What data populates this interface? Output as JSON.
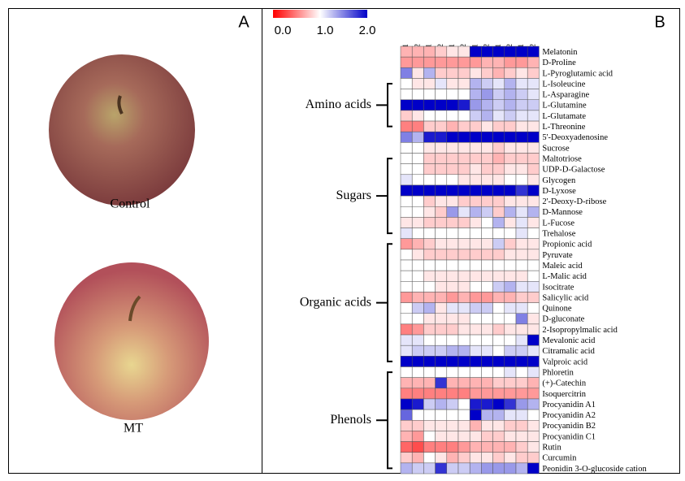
{
  "panel_a": {
    "label": "A",
    "captions": [
      "Control",
      "MT"
    ]
  },
  "panel_b": {
    "label": "B"
  },
  "chart_data": {
    "type": "heatmap",
    "columns": [
      "CK2_A1",
      "CK2_A2",
      "CK2_B1",
      "CK2_B2",
      "CK2_C1",
      "CK2_C2",
      "MT2_A1",
      "MT2_A2",
      "MT2_B1",
      "MT2_B2",
      "MT2_C1",
      "MT2_C2"
    ],
    "rows": [
      "Melatonin",
      "D-Proline",
      "L-Pyroglutamic acid",
      "L-Isoleucine",
      "L-Asparagine",
      "L-Glutamine",
      "L-Glutamate",
      "L-Threonine",
      "5'-Deoxyadenosine",
      "Sucrose",
      "Maltotriose",
      "UDP-D-Galactose",
      "Glycogen",
      "D-Lyxose",
      "2'-Deoxy-D-ribose",
      "D-Mannose",
      "L-Fucose",
      "Trehalose",
      "Propionic acid",
      "Pyruvate",
      "Maleic acid",
      "L-Malic acid",
      "Isocitrate",
      "Salicylic acid",
      "Quinone",
      "D-gluconate",
      "2-Isopropylmalic acid",
      "Mevalonic acid",
      "Citramalic acid",
      "Valproic acid",
      "Phloretin",
      "(+)-Catechin",
      "Isoquercitrin",
      "Procyanidin A1",
      "Procyanidin A2",
      "Procyanidin B2",
      "Procyanidin C1",
      "Rutin",
      "Curcumin",
      "Peonidin 3-O-glucoside cation"
    ],
    "groups": [
      "Amino acids",
      "Sugars",
      "Organic acids",
      "Phenols"
    ],
    "colormap": [
      "#ff0000",
      "#ffffff",
      "#0000c8"
    ],
    "colorlim": [
      0,
      2
    ],
    "colorticks": [
      {
        "value": 0,
        "label": "0.0"
      },
      {
        "value": 1,
        "label": "1.0"
      },
      {
        "value": 2,
        "label": "2.0"
      }
    ],
    "values": [
      [
        0.7,
        0.7,
        0.7,
        0.8,
        0.9,
        0.9,
        2,
        2,
        2,
        2,
        2,
        2
      ],
      [
        0.6,
        0.6,
        0.6,
        0.6,
        0.6,
        0.6,
        0.6,
        0.7,
        0.7,
        0.6,
        0.6,
        0.7
      ],
      [
        1.5,
        0.9,
        1.3,
        0.8,
        0.8,
        0.8,
        0.9,
        0.8,
        0.7,
        0.8,
        0.9,
        0.8
      ],
      [
        1.0,
        0.9,
        0.9,
        1.1,
        0.9,
        0.9,
        1.3,
        1.2,
        1.1,
        1.3,
        1.1,
        1.1
      ],
      [
        1.0,
        1.0,
        1.0,
        1.0,
        1.0,
        1.0,
        1.3,
        1.4,
        1.2,
        1.3,
        1.2,
        1.1
      ],
      [
        2,
        2,
        2,
        2,
        2,
        1.9,
        1.4,
        1.3,
        1.2,
        1.3,
        1.2,
        1.2
      ],
      [
        0.8,
        0.9,
        1.0,
        1.0,
        1.0,
        1.0,
        1.2,
        1.3,
        1.1,
        1.2,
        1.1,
        1.1
      ],
      [
        0.5,
        0.5,
        0.8,
        0.8,
        0.7,
        0.8,
        0.8,
        0.9,
        0.8,
        0.8,
        0.9,
        0.9
      ],
      [
        1.5,
        1.3,
        1.9,
        1.9,
        2,
        2,
        2,
        2,
        2,
        2,
        2,
        2
      ],
      [
        1.0,
        1.0,
        0.9,
        0.9,
        0.9,
        0.9,
        0.9,
        0.9,
        0.8,
        0.9,
        0.9,
        0.9
      ],
      [
        1.0,
        1.0,
        0.8,
        0.8,
        0.8,
        0.8,
        0.8,
        0.8,
        0.7,
        0.8,
        0.8,
        0.8
      ],
      [
        1.0,
        1.0,
        0.8,
        0.8,
        0.8,
        0.8,
        0.9,
        0.8,
        0.8,
        0.9,
        0.9,
        0.8
      ],
      [
        1.1,
        1.0,
        1.0,
        1.0,
        1.0,
        0.9,
        0.9,
        0.9,
        0.9,
        1.0,
        1.0,
        0.9
      ],
      [
        2,
        2,
        2,
        2,
        2,
        2,
        2,
        2,
        2,
        2,
        1.8,
        2
      ],
      [
        1.0,
        1.0,
        0.8,
        0.9,
        0.9,
        0.8,
        0.8,
        0.8,
        0.8,
        0.9,
        0.9,
        0.9
      ],
      [
        1.0,
        1.0,
        0.9,
        0.8,
        1.4,
        1.1,
        1.3,
        1.2,
        0.8,
        1.3,
        1.1,
        1.3
      ],
      [
        0.9,
        0.9,
        0.8,
        0.8,
        0.8,
        0.8,
        0.9,
        1.0,
        1.3,
        0.9,
        1.1,
        0.9
      ],
      [
        1.1,
        1.0,
        1.0,
        1.0,
        1.0,
        1.0,
        1.0,
        1.0,
        1.0,
        1.0,
        1.1,
        1.0
      ],
      [
        0.6,
        0.7,
        0.8,
        0.9,
        0.9,
        0.9,
        0.9,
        0.9,
        1.2,
        0.8,
        0.9,
        0.9
      ],
      [
        1.0,
        0.9,
        0.8,
        0.8,
        0.8,
        0.8,
        0.8,
        0.8,
        0.8,
        0.9,
        0.9,
        0.9
      ],
      [
        1.0,
        1.0,
        1.0,
        1.0,
        1.0,
        1.0,
        1.0,
        1.0,
        1.0,
        1.0,
        1.0,
        1.0
      ],
      [
        1.0,
        1.0,
        0.9,
        0.9,
        0.9,
        0.9,
        0.9,
        0.9,
        0.9,
        0.9,
        0.9,
        1.0
      ],
      [
        1.0,
        1.0,
        1.0,
        0.9,
        0.9,
        0.9,
        1.0,
        1.0,
        1.2,
        1.3,
        1.1,
        1.1
      ],
      [
        0.6,
        0.7,
        0.7,
        0.7,
        0.6,
        0.7,
        0.6,
        0.6,
        0.7,
        0.7,
        0.8,
        0.8
      ],
      [
        1.0,
        1.2,
        1.3,
        0.9,
        1.1,
        1.1,
        1.2,
        1.2,
        1.0,
        1.1,
        1.1,
        1.0
      ],
      [
        1.0,
        1.0,
        0.9,
        0.9,
        0.9,
        0.9,
        1.0,
        1.0,
        1.0,
        1.0,
        1.5,
        0.9
      ],
      [
        0.5,
        0.6,
        0.8,
        0.8,
        0.8,
        0.9,
        0.9,
        0.9,
        0.8,
        0.9,
        0.9,
        0.9
      ],
      [
        1.1,
        1.1,
        1.0,
        1.0,
        1.0,
        1.0,
        1.0,
        1.0,
        1.0,
        1.0,
        1.1,
        2
      ],
      [
        1.1,
        1.2,
        1.2,
        1.2,
        1.3,
        1.3,
        1.1,
        1.1,
        1.0,
        1.2,
        1.2,
        1.1
      ],
      [
        2,
        2,
        2,
        2,
        2,
        2,
        2,
        2,
        2,
        2,
        2,
        2
      ],
      [
        1.0,
        1.0,
        1.0,
        1.0,
        1.0,
        1.0,
        1.0,
        1.0,
        1.0,
        1.1,
        1.0,
        1.1
      ],
      [
        0.7,
        0.7,
        0.7,
        1.8,
        0.7,
        0.7,
        0.7,
        0.7,
        0.8,
        0.8,
        0.8,
        0.7
      ],
      [
        0.5,
        0.5,
        0.5,
        0.5,
        0.5,
        0.5,
        0.6,
        0.6,
        0.6,
        0.6,
        0.6,
        0.6
      ],
      [
        2,
        1.9,
        1.2,
        1.3,
        1.2,
        1.0,
        1.9,
        1.9,
        2,
        1.8,
        1.4,
        1.3
      ],
      [
        1.6,
        1.0,
        1.0,
        1.0,
        1.0,
        1.0,
        2,
        1.3,
        1.3,
        1.1,
        1.1,
        1.0
      ],
      [
        0.8,
        0.8,
        0.9,
        0.9,
        0.9,
        0.9,
        0.7,
        0.9,
        0.9,
        0.8,
        0.8,
        0.9
      ],
      [
        0.7,
        0.6,
        1.0,
        0.9,
        0.9,
        0.9,
        0.9,
        0.8,
        0.8,
        0.9,
        0.9,
        0.9
      ],
      [
        0.4,
        0.3,
        0.5,
        0.5,
        0.5,
        0.6,
        0.7,
        0.7,
        0.7,
        0.7,
        0.8,
        0.9
      ],
      [
        0.8,
        0.7,
        1.0,
        0.9,
        0.7,
        0.8,
        0.9,
        0.9,
        0.8,
        0.9,
        0.8,
        0.8
      ],
      [
        1.3,
        1.2,
        1.2,
        1.8,
        1.2,
        1.2,
        1.3,
        1.4,
        1.4,
        1.4,
        1.3,
        2
      ]
    ]
  }
}
